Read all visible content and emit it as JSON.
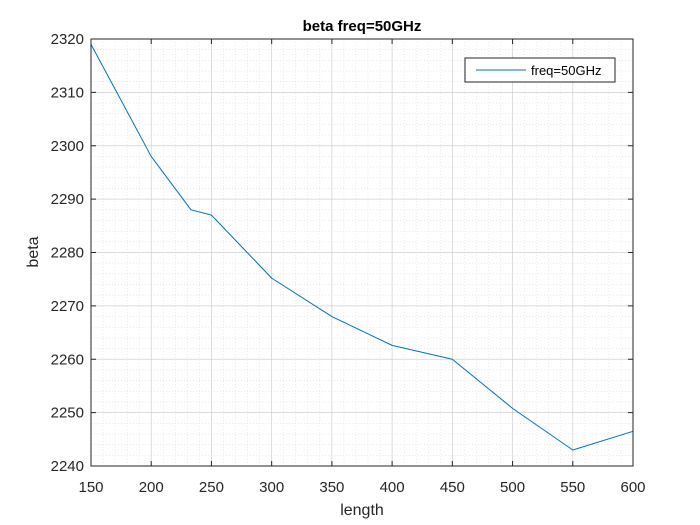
{
  "chart_data": {
    "type": "line",
    "title": "beta freq=50GHz",
    "xlabel": "length",
    "ylabel": "beta",
    "xlim": [
      150,
      600
    ],
    "ylim": [
      2240,
      2320
    ],
    "xticks": [
      150,
      200,
      250,
      300,
      350,
      400,
      450,
      500,
      550,
      600
    ],
    "yticks": [
      2240,
      2250,
      2260,
      2270,
      2280,
      2290,
      2300,
      2310,
      2320
    ],
    "grid": true,
    "minor_grid": true,
    "legend_position": "top-right",
    "series": [
      {
        "name": "freq=50GHz",
        "color": "#0072BD",
        "x": [
          150,
          200,
          233,
          250,
          300,
          350,
          400,
          450,
          500,
          550,
          600
        ],
        "y": [
          2319,
          2298,
          2288,
          2287,
          2275.2,
          2268,
          2262.6,
          2260,
          2250.8,
          2243,
          2246.5
        ]
      }
    ]
  }
}
